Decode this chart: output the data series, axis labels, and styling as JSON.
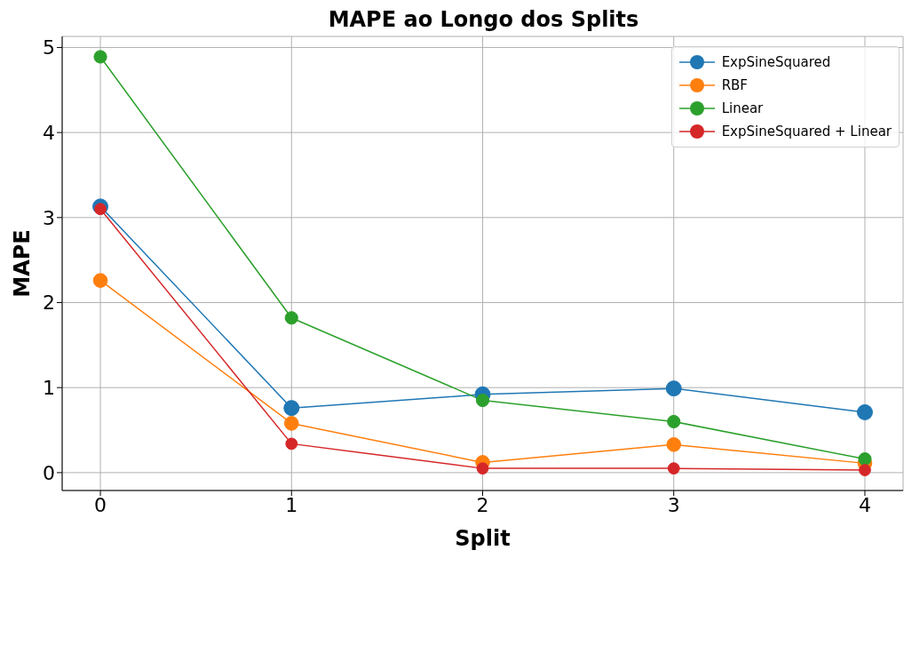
{
  "chart_data": {
    "type": "line",
    "title": "MAPE ao Longo dos Splits",
    "xlabel": "Split",
    "ylabel": "MAPE",
    "x": [
      0,
      1,
      2,
      3,
      4
    ],
    "series": [
      {
        "name": "ExpSineSquared",
        "color": "#1f77b4",
        "values": [
          3.13,
          0.76,
          0.92,
          0.99,
          0.71
        ]
      },
      {
        "name": "RBF",
        "color": "#ff7f0e",
        "values": [
          2.26,
          0.58,
          0.12,
          0.33,
          0.11
        ]
      },
      {
        "name": "Linear",
        "color": "#2ca02c",
        "values": [
          4.89,
          1.82,
          0.85,
          0.6,
          0.16
        ]
      },
      {
        "name": "ExpSineSquared + Linear",
        "color": "#d62728",
        "values": [
          3.1,
          0.34,
          0.05,
          0.05,
          0.03
        ]
      }
    ],
    "xlim": [
      -0.2,
      4.2
    ],
    "xticks": [
      0,
      1,
      2,
      3,
      4
    ],
    "ylim": [
      -0.21,
      5.13
    ],
    "yticks": [
      0,
      1,
      2,
      3,
      4,
      5
    ],
    "grid": true,
    "legend": "top right",
    "marker": "circle",
    "line_style": "solid"
  }
}
